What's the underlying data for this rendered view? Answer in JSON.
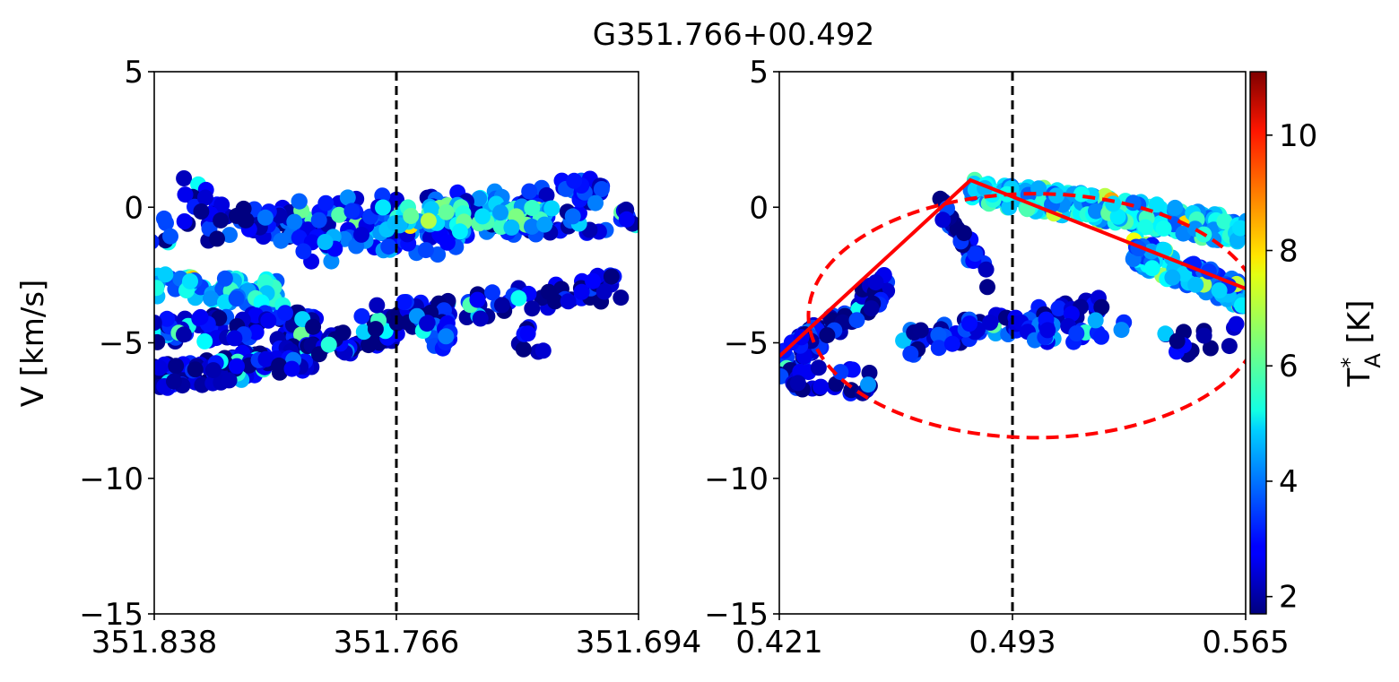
{
  "figure": {
    "title": "G351.766+00.492"
  },
  "chart_data": [
    {
      "type": "scatter",
      "panel": "left",
      "title": "",
      "xlabel": "",
      "ylabel": "V [km/s]",
      "xlim": [
        351.838,
        351.694
      ],
      "ylim": [
        -15,
        5
      ],
      "xticks": [
        351.838,
        351.766,
        351.694
      ],
      "xtick_labels": [
        "351.838",
        "351.766",
        "351.694"
      ],
      "yticks": [
        5,
        0,
        -5,
        -10,
        -15
      ],
      "ytick_labels": [
        "5",
        "0",
        "−5",
        "−10",
        "−15"
      ],
      "marker_line": {
        "x": 351.766,
        "style": "dashed",
        "color": "#000000"
      },
      "colormap": "jet",
      "clouds": [
        {
          "x0": 351.838,
          "y0": -0.9,
          "x1": 351.694,
          "y1": -0.4,
          "tmean": 2.8,
          "n": 130
        },
        {
          "x0": 351.81,
          "y0": -0.4,
          "x1": 351.7,
          "y1": 0.7,
          "tmean": 3.2,
          "n": 90
        },
        {
          "x0": 351.795,
          "y0": -1.6,
          "x1": 351.745,
          "y1": -1.2,
          "tmean": 3.6,
          "n": 40
        },
        {
          "x0": 351.77,
          "y0": -0.5,
          "x1": 351.72,
          "y1": -0.3,
          "tmean": 5.2,
          "n": 60
        },
        {
          "x0": 351.838,
          "y0": -2.8,
          "x1": 351.8,
          "y1": -3.2,
          "tmean": 4.6,
          "n": 70
        },
        {
          "x0": 351.838,
          "y0": -4.6,
          "x1": 351.79,
          "y1": -4.3,
          "tmean": 2.6,
          "n": 90
        },
        {
          "x0": 351.838,
          "y0": -6.3,
          "x1": 351.79,
          "y1": -5.5,
          "tmean": 2.2,
          "n": 110
        },
        {
          "x0": 351.79,
          "y0": -5.3,
          "x1": 351.766,
          "y1": -4.4,
          "tmean": 2.2,
          "n": 40
        },
        {
          "x0": 351.776,
          "y0": -4.2,
          "x1": 351.7,
          "y1": -2.9,
          "tmean": 2.3,
          "n": 80
        },
        {
          "x0": 351.76,
          "y0": -4.5,
          "x1": 351.75,
          "y1": -4.8,
          "tmean": 3.5,
          "n": 15
        },
        {
          "x0": 351.83,
          "y0": 0.7,
          "x1": 351.81,
          "y1": -0.6,
          "tmean": 2.0,
          "n": 20
        },
        {
          "x0": 351.73,
          "y0": -4.7,
          "x1": 351.722,
          "y1": -5.1,
          "tmean": 2.0,
          "n": 8
        }
      ]
    },
    {
      "type": "scatter",
      "panel": "right",
      "title": "",
      "xlabel": "",
      "ylabel": "",
      "xlim": [
        0.421,
        0.565
      ],
      "ylim": [
        -15,
        5
      ],
      "xticks": [
        0.421,
        0.493,
        0.565
      ],
      "xtick_labels": [
        "0.421",
        "0.493",
        "0.565"
      ],
      "yticks": [
        5,
        0,
        -5,
        -10,
        -15
      ],
      "ytick_labels": [
        "5",
        "0",
        "−5",
        "−10",
        "−15"
      ],
      "marker_line": {
        "x": 0.493,
        "style": "dashed",
        "color": "#000000"
      },
      "colormap": "jet",
      "clouds": [
        {
          "x0": 0.48,
          "y0": 0.7,
          "x1": 0.565,
          "y1": -0.9,
          "tmean": 4.8,
          "n": 220
        },
        {
          "x0": 0.53,
          "y0": -1.6,
          "x1": 0.565,
          "y1": -3.3,
          "tmean": 4.2,
          "n": 110
        },
        {
          "x0": 0.47,
          "y0": 0.3,
          "x1": 0.485,
          "y1": -2.5,
          "tmean": 2.2,
          "n": 30
        },
        {
          "x0": 0.421,
          "y0": -5.8,
          "x1": 0.455,
          "y1": -2.8,
          "tmean": 2.5,
          "n": 90
        },
        {
          "x0": 0.425,
          "y0": -6.3,
          "x1": 0.45,
          "y1": -6.5,
          "tmean": 2.3,
          "n": 25
        },
        {
          "x0": 0.46,
          "y0": -5.0,
          "x1": 0.52,
          "y1": -3.8,
          "tmean": 2.8,
          "n": 70
        },
        {
          "x0": 0.495,
          "y0": -4.5,
          "x1": 0.53,
          "y1": -4.5,
          "tmean": 3.6,
          "n": 25
        },
        {
          "x0": 0.54,
          "y0": -5.1,
          "x1": 0.565,
          "y1": -4.7,
          "tmean": 2.0,
          "n": 15
        }
      ],
      "fit_line": {
        "x": [
          0.421,
          0.48,
          0.565
        ],
        "y": [
          -5.5,
          1.0,
          -3.0
        ],
        "color": "#ff0000",
        "style": "solid"
      },
      "ellipse": {
        "cx": 0.5,
        "cy": -4.0,
        "rx": 0.07,
        "ry": 4.5,
        "angle_deg": 0,
        "color": "#ff0000",
        "style": "dashed"
      }
    }
  ],
  "colorbar": {
    "label": "T*A [K]",
    "label_main": "T",
    "label_sup": "*",
    "label_sub": "A",
    "label_unit": " [K]",
    "min": 1.7,
    "max": 11.1,
    "ticks": [
      2,
      4,
      6,
      8,
      10
    ],
    "tick_labels": [
      "2",
      "4",
      "6",
      "8",
      "10"
    ],
    "colormap": "jet"
  }
}
